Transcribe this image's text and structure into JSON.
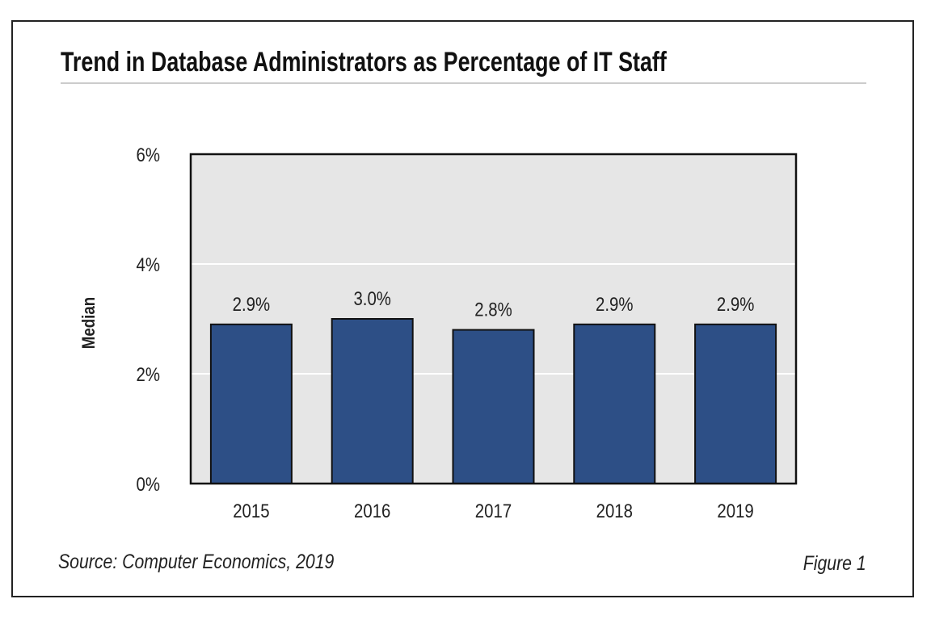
{
  "chart_data": {
    "type": "bar",
    "title": "Trend in Database Administrators as Percentage of IT Staff",
    "ylabel": "Median",
    "xlabel": "",
    "categories": [
      "2015",
      "2016",
      "2017",
      "2018",
      "2019"
    ],
    "values": [
      2.9,
      3.0,
      2.8,
      2.9,
      2.9
    ],
    "data_labels": [
      "2.9%",
      "3.0%",
      "2.8%",
      "2.9%",
      "2.9%"
    ],
    "ylim": [
      0,
      6
    ],
    "yticks": [
      0,
      2,
      4,
      6
    ],
    "ytick_labels": [
      "0%",
      "2%",
      "4%",
      "6%"
    ],
    "grid": true,
    "bar_color": "#2d4f86",
    "plot_background": "#e6e6e6"
  },
  "footer": {
    "source": "Source: Computer Economics, 2019",
    "figure": "Figure 1"
  }
}
